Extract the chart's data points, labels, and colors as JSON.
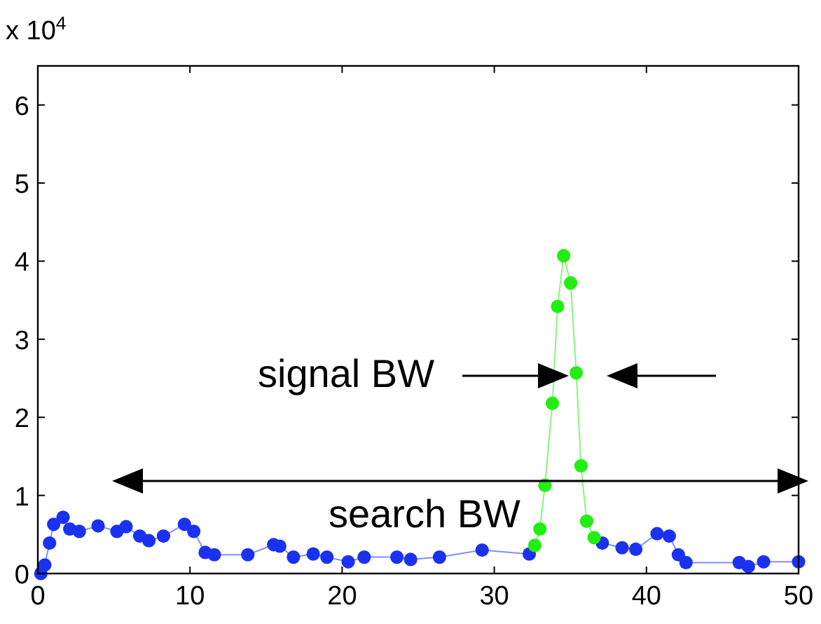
{
  "chart_data": {
    "type": "line",
    "ylabel": "x 10$^{4}$",
    "xlim": [
      0,
      50
    ],
    "ylim": [
      0,
      6.5
    ],
    "xticks": [
      0,
      10,
      20,
      30,
      40,
      50
    ],
    "yticks": [
      0,
      1,
      2,
      3,
      4,
      5,
      6
    ],
    "grid": false,
    "marker": "circle",
    "line_style": "solid",
    "series": [
      {
        "color": "#1a32f0",
        "x": [
          0.2,
          0.46,
          0.77,
          1.04,
          1.66,
          2.1,
          2.73,
          3.96,
          5.2,
          5.8,
          6.7,
          7.3,
          8.26,
          9.64,
          10.25,
          11.0,
          11.6,
          13.8,
          15.5,
          15.9,
          16.8,
          18.1,
          19.0,
          20.4,
          21.45,
          23.6,
          24.5,
          26.4,
          29.2,
          32.3,
          null,
          37.1,
          38.4,
          39.3,
          40.7,
          41.5,
          42.1,
          42.6,
          46.1,
          46.7,
          47.7,
          50.0
        ],
        "values": [
          0.0,
          0.11,
          0.39,
          0.63,
          0.72,
          0.57,
          0.54,
          0.61,
          0.54,
          0.6,
          0.48,
          0.42,
          0.48,
          0.63,
          0.54,
          0.27,
          0.24,
          0.24,
          0.37,
          0.35,
          0.21,
          0.25,
          0.21,
          0.15,
          0.21,
          0.21,
          0.18,
          0.21,
          0.3,
          0.25,
          null,
          0.39,
          0.33,
          0.31,
          0.51,
          0.48,
          0.24,
          0.14,
          0.14,
          0.09,
          0.15,
          0.15
        ]
      },
      {
        "color": "#22ee11",
        "x": [
          32.66,
          33.0,
          33.33,
          33.82,
          34.16,
          34.56,
          35.02,
          35.39,
          35.7,
          36.07,
          36.56
        ],
        "values": [
          0.36,
          0.57,
          1.13,
          2.18,
          3.42,
          4.07,
          3.72,
          2.57,
          1.38,
          0.67,
          0.46
        ]
      }
    ],
    "annotations": [
      "signal BW",
      "search BW"
    ]
  }
}
